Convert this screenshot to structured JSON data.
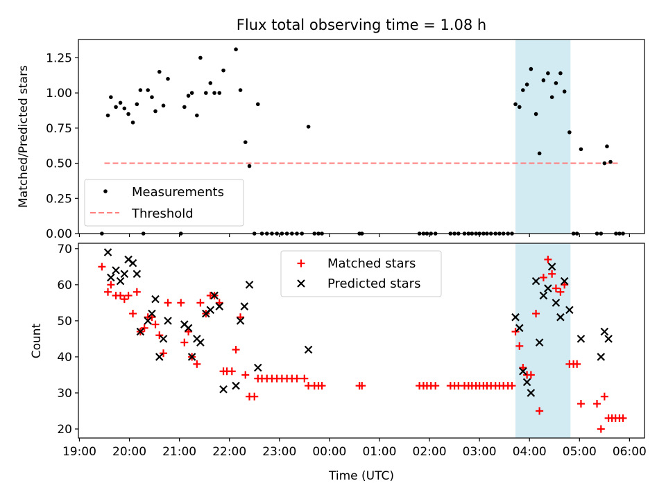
{
  "title": "Flux total observing time = 1.08 h",
  "colors": {
    "measurement": "#000000",
    "threshold": "#ff7f7f",
    "matched": "#ff0000",
    "predicted": "#000000",
    "highlight": "#add8e6"
  },
  "chart_data": [
    {
      "type": "scatter",
      "ylabel": "Matched/Predicted stars",
      "ylim": [
        0,
        1.38
      ],
      "yticks": [
        0,
        0.25,
        0.5,
        0.75,
        1.0,
        1.25
      ],
      "ytick_labels": [
        "0.00",
        "0.25",
        "0.50",
        "0.75",
        "1.00",
        "1.25"
      ],
      "legend": {
        "placement": "lower-left",
        "measurements": "Measurements",
        "threshold": "Threshold"
      },
      "threshold": {
        "value": 0.5,
        "x_start": 19.5,
        "x_end": 29.8
      },
      "highlight_span": [
        27.72,
        28.82
      ],
      "measurements": [
        [
          19.45,
          0
        ],
        [
          19.57,
          0.84
        ],
        [
          19.63,
          0.97
        ],
        [
          19.73,
          0.9
        ],
        [
          19.82,
          0.93
        ],
        [
          19.9,
          0.89
        ],
        [
          19.98,
          0.85
        ],
        [
          20.07,
          0.79
        ],
        [
          20.15,
          0.92
        ],
        [
          20.22,
          1.02
        ],
        [
          20.28,
          0
        ],
        [
          20.37,
          1.02
        ],
        [
          20.45,
          0.97
        ],
        [
          20.52,
          0.87
        ],
        [
          20.6,
          1.15
        ],
        [
          20.68,
          0.91
        ],
        [
          20.77,
          1.1
        ],
        [
          21.03,
          0
        ],
        [
          21.1,
          0.9
        ],
        [
          21.18,
          0.98
        ],
        [
          21.25,
          1.0
        ],
        [
          21.35,
          0.84
        ],
        [
          21.42,
          1.25
        ],
        [
          21.53,
          1.0
        ],
        [
          21.62,
          1.07
        ],
        [
          21.7,
          1.0
        ],
        [
          21.8,
          1.0
        ],
        [
          21.88,
          1.16
        ],
        [
          22.13,
          1.31
        ],
        [
          22.22,
          1.02
        ],
        [
          22.32,
          0.65
        ],
        [
          22.4,
          0.48
        ],
        [
          22.5,
          0
        ],
        [
          22.57,
          0.92
        ],
        [
          22.65,
          0
        ],
        [
          22.75,
          0
        ],
        [
          22.85,
          0
        ],
        [
          22.95,
          0
        ],
        [
          23.05,
          0
        ],
        [
          23.15,
          0
        ],
        [
          23.25,
          0
        ],
        [
          23.35,
          0
        ],
        [
          23.45,
          0
        ],
        [
          23.58,
          0.76
        ],
        [
          23.7,
          0
        ],
        [
          23.78,
          0
        ],
        [
          23.85,
          0
        ],
        [
          24.6,
          0
        ],
        [
          24.65,
          0
        ],
        [
          25.8,
          0
        ],
        [
          25.88,
          0
        ],
        [
          25.95,
          0
        ],
        [
          26.03,
          0
        ],
        [
          26.12,
          0
        ],
        [
          26.42,
          0
        ],
        [
          26.5,
          0
        ],
        [
          26.58,
          0
        ],
        [
          26.7,
          0
        ],
        [
          26.78,
          0
        ],
        [
          26.85,
          0
        ],
        [
          26.93,
          0
        ],
        [
          27.0,
          0
        ],
        [
          27.08,
          0
        ],
        [
          27.15,
          0
        ],
        [
          27.23,
          0
        ],
        [
          27.32,
          0
        ],
        [
          27.4,
          0
        ],
        [
          27.48,
          0
        ],
        [
          27.57,
          0
        ],
        [
          27.65,
          0
        ],
        [
          27.72,
          0.92
        ],
        [
          27.8,
          0.9
        ],
        [
          27.87,
          1.02
        ],
        [
          27.95,
          1.06
        ],
        [
          28.03,
          1.17
        ],
        [
          28.13,
          0.85
        ],
        [
          28.2,
          0.57
        ],
        [
          28.28,
          1.09
        ],
        [
          28.37,
          1.14
        ],
        [
          28.45,
          0.97
        ],
        [
          28.53,
          1.07
        ],
        [
          28.62,
          1.14
        ],
        [
          28.7,
          1.01
        ],
        [
          28.8,
          0.72
        ],
        [
          28.88,
          0
        ],
        [
          28.95,
          0
        ],
        [
          29.03,
          0.6
        ],
        [
          29.35,
          0
        ],
        [
          29.43,
          0
        ],
        [
          29.5,
          0.5
        ],
        [
          29.55,
          0.62
        ],
        [
          29.62,
          0.51
        ],
        [
          29.73,
          0
        ],
        [
          29.8,
          0
        ],
        [
          29.87,
          0
        ]
      ]
    },
    {
      "type": "scatter",
      "xlabel": "Time (UTC)",
      "ylabel": "Count",
      "xlim": [
        18.98,
        30.3
      ],
      "ylim": [
        17.5,
        71.5
      ],
      "yticks": [
        20,
        30,
        40,
        50,
        60,
        70
      ],
      "ytick_labels": [
        "20",
        "30",
        "40",
        "50",
        "60",
        "70"
      ],
      "xticks": [
        19,
        20,
        21,
        22,
        23,
        24,
        25,
        26,
        27,
        28,
        29,
        30
      ],
      "xtick_labels": [
        "19:00",
        "20:00",
        "21:00",
        "22:00",
        "23:00",
        "00:00",
        "01:00",
        "02:00",
        "03:00",
        "04:00",
        "05:00",
        "06:00"
      ],
      "legend": {
        "placement": "upper-center",
        "matched": "Matched stars",
        "predicted": "Predicted stars"
      },
      "highlight_span": [
        27.72,
        28.82
      ],
      "series": [
        {
          "name": "Matched stars",
          "marker": "+",
          "points": [
            [
              19.45,
              65
            ],
            [
              19.57,
              58
            ],
            [
              19.63,
              60
            ],
            [
              19.73,
              57
            ],
            [
              19.82,
              57
            ],
            [
              19.9,
              56
            ],
            [
              19.98,
              57
            ],
            [
              20.07,
              52
            ],
            [
              20.15,
              58
            ],
            [
              20.22,
              47
            ],
            [
              20.3,
              48
            ],
            [
              20.37,
              51
            ],
            [
              20.45,
              51
            ],
            [
              20.52,
              49
            ],
            [
              20.6,
              46
            ],
            [
              20.68,
              41
            ],
            [
              20.77,
              55
            ],
            [
              21.03,
              55
            ],
            [
              21.1,
              44
            ],
            [
              21.18,
              47
            ],
            [
              21.25,
              40
            ],
            [
              21.35,
              38
            ],
            [
              21.42,
              55
            ],
            [
              21.53,
              52
            ],
            [
              21.62,
              57
            ],
            [
              21.7,
              57
            ],
            [
              21.8,
              55
            ],
            [
              21.88,
              36
            ],
            [
              21.95,
              36
            ],
            [
              22.05,
              36
            ],
            [
              22.13,
              42
            ],
            [
              22.22,
              51
            ],
            [
              22.32,
              35
            ],
            [
              22.4,
              29
            ],
            [
              22.5,
              29
            ],
            [
              22.57,
              34
            ],
            [
              22.65,
              34
            ],
            [
              22.75,
              34
            ],
            [
              22.85,
              34
            ],
            [
              22.95,
              34
            ],
            [
              23.05,
              34
            ],
            [
              23.15,
              34
            ],
            [
              23.25,
              34
            ],
            [
              23.35,
              34
            ],
            [
              23.5,
              34
            ],
            [
              23.58,
              32
            ],
            [
              23.7,
              32
            ],
            [
              23.78,
              32
            ],
            [
              23.85,
              32
            ],
            [
              24.6,
              32
            ],
            [
              24.65,
              32
            ],
            [
              25.8,
              32
            ],
            [
              25.88,
              32
            ],
            [
              25.95,
              32
            ],
            [
              26.03,
              32
            ],
            [
              26.12,
              32
            ],
            [
              26.42,
              32
            ],
            [
              26.5,
              32
            ],
            [
              26.58,
              32
            ],
            [
              26.7,
              32
            ],
            [
              26.78,
              32
            ],
            [
              26.85,
              32
            ],
            [
              26.93,
              32
            ],
            [
              27.0,
              32
            ],
            [
              27.08,
              32
            ],
            [
              27.15,
              32
            ],
            [
              27.23,
              32
            ],
            [
              27.32,
              32
            ],
            [
              27.4,
              32
            ],
            [
              27.48,
              32
            ],
            [
              27.57,
              32
            ],
            [
              27.65,
              32
            ],
            [
              27.72,
              47
            ],
            [
              27.8,
              43
            ],
            [
              27.87,
              37
            ],
            [
              27.95,
              35
            ],
            [
              28.03,
              35
            ],
            [
              28.13,
              52
            ],
            [
              28.2,
              25
            ],
            [
              28.28,
              62
            ],
            [
              28.37,
              67
            ],
            [
              28.45,
              63
            ],
            [
              28.53,
              59
            ],
            [
              28.62,
              58
            ],
            [
              28.7,
              60
            ],
            [
              28.8,
              38
            ],
            [
              28.88,
              38
            ],
            [
              28.95,
              38
            ],
            [
              29.03,
              27
            ],
            [
              29.35,
              27
            ],
            [
              29.43,
              20
            ],
            [
              29.5,
              29
            ],
            [
              29.58,
              23
            ],
            [
              29.65,
              23
            ],
            [
              29.72,
              23
            ],
            [
              29.8,
              23
            ],
            [
              29.87,
              23
            ]
          ]
        },
        {
          "name": "Predicted stars",
          "marker": "x",
          "points": [
            [
              19.57,
              69
            ],
            [
              19.63,
              62
            ],
            [
              19.73,
              64
            ],
            [
              19.82,
              61
            ],
            [
              19.9,
              63
            ],
            [
              19.98,
              67
            ],
            [
              20.07,
              66
            ],
            [
              20.15,
              63
            ],
            [
              20.22,
              47
            ],
            [
              20.37,
              50
            ],
            [
              20.45,
              52
            ],
            [
              20.52,
              56
            ],
            [
              20.6,
              40
            ],
            [
              20.68,
              45
            ],
            [
              20.77,
              50
            ],
            [
              21.1,
              49
            ],
            [
              21.18,
              48
            ],
            [
              21.25,
              40
            ],
            [
              21.35,
              45
            ],
            [
              21.42,
              44
            ],
            [
              21.53,
              52
            ],
            [
              21.62,
              53
            ],
            [
              21.7,
              57
            ],
            [
              21.8,
              54
            ],
            [
              21.88,
              31
            ],
            [
              22.13,
              32
            ],
            [
              22.22,
              50
            ],
            [
              22.3,
              54
            ],
            [
              22.4,
              60
            ],
            [
              22.57,
              37
            ],
            [
              23.58,
              42
            ],
            [
              27.72,
              51
            ],
            [
              27.8,
              48
            ],
            [
              27.87,
              36
            ],
            [
              27.95,
              33
            ],
            [
              28.03,
              30
            ],
            [
              28.13,
              61
            ],
            [
              28.2,
              44
            ],
            [
              28.28,
              57
            ],
            [
              28.37,
              59
            ],
            [
              28.45,
              65
            ],
            [
              28.53,
              55
            ],
            [
              28.62,
              51
            ],
            [
              28.7,
              61
            ],
            [
              28.8,
              53
            ],
            [
              29.03,
              45
            ],
            [
              29.43,
              40
            ],
            [
              29.5,
              47
            ],
            [
              29.58,
              45
            ]
          ]
        }
      ]
    }
  ]
}
